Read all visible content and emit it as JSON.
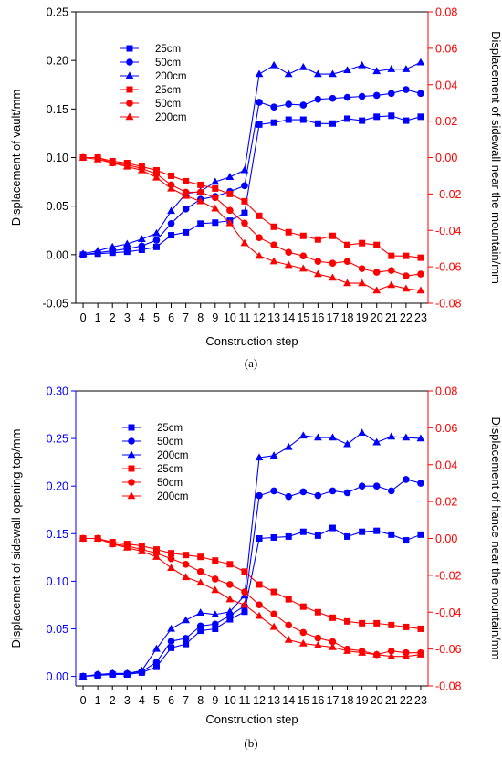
{
  "chart_data": [
    {
      "type": "line",
      "caption": "(a)",
      "xlabel": "Construction step",
      "ylabel_left": "Displacement of vault/mm",
      "ylabel_right": "Displacement of sidewall near the mountain/mm",
      "x": [
        0,
        1,
        2,
        3,
        4,
        5,
        6,
        7,
        8,
        9,
        10,
        11,
        12,
        13,
        14,
        15,
        16,
        17,
        18,
        19,
        20,
        21,
        22,
        23
      ],
      "xticks": [
        "0",
        "1",
        "2",
        "3",
        "4",
        "5",
        "6",
        "7",
        "8",
        "9",
        "10",
        "11",
        "12",
        "13",
        "14",
        "15",
        "16",
        "17",
        "18",
        "19",
        "20",
        "21",
        "22",
        "23"
      ],
      "ylim_left": [
        -0.05,
        0.25
      ],
      "yticks_left": [
        "-0.05",
        "0.00",
        "0.05",
        "0.10",
        "0.15",
        "0.20",
        "0.25"
      ],
      "ylim_right": [
        -0.08,
        0.08
      ],
      "yticks_right": [
        "-0.08",
        "-0.06",
        "-0.04",
        "-0.02",
        "0.00",
        "0.02",
        "0.04",
        "0.06",
        "0.08"
      ],
      "left_color": "#000000",
      "right_color": "#ff0000",
      "legend_position": "top-left",
      "series": [
        {
          "name": "25cm",
          "axis": "left",
          "color": "#0000ff",
          "marker": "square",
          "values": [
            0.0,
            0.001,
            0.002,
            0.003,
            0.005,
            0.008,
            0.02,
            0.023,
            0.032,
            0.033,
            0.035,
            0.043,
            0.134,
            0.136,
            0.139,
            0.139,
            0.135,
            0.135,
            0.14,
            0.138,
            0.142,
            0.143,
            0.138,
            0.142
          ]
        },
        {
          "name": "50cm",
          "axis": "left",
          "color": "#0000ff",
          "marker": "circle",
          "values": [
            0.0,
            0.002,
            0.004,
            0.006,
            0.009,
            0.015,
            0.032,
            0.047,
            0.057,
            0.06,
            0.065,
            0.071,
            0.157,
            0.152,
            0.155,
            0.154,
            0.16,
            0.161,
            0.162,
            0.163,
            0.164,
            0.166,
            0.17,
            0.166
          ]
        },
        {
          "name": "200cm",
          "axis": "left",
          "color": "#0000ff",
          "marker": "triangle",
          "values": [
            0.001,
            0.004,
            0.008,
            0.011,
            0.016,
            0.022,
            0.045,
            0.063,
            0.065,
            0.075,
            0.08,
            0.087,
            0.186,
            0.195,
            0.186,
            0.193,
            0.186,
            0.186,
            0.19,
            0.195,
            0.189,
            0.191,
            0.191,
            0.198
          ]
        },
        {
          "name": "25cm",
          "axis": "right",
          "color": "#ff0000",
          "marker": "square",
          "values": [
            0.0,
            0.0,
            -0.002,
            -0.003,
            -0.005,
            -0.007,
            -0.01,
            -0.013,
            -0.015,
            -0.017,
            -0.02,
            -0.024,
            -0.032,
            -0.038,
            -0.041,
            -0.043,
            -0.045,
            -0.043,
            -0.048,
            -0.047,
            -0.048,
            -0.054,
            -0.054,
            -0.055
          ]
        },
        {
          "name": "50cm",
          "axis": "right",
          "color": "#ff0000",
          "marker": "circle",
          "values": [
            0.0,
            0.0,
            -0.003,
            -0.004,
            -0.006,
            -0.009,
            -0.015,
            -0.019,
            -0.019,
            -0.022,
            -0.029,
            -0.036,
            -0.044,
            -0.048,
            -0.052,
            -0.054,
            -0.057,
            -0.058,
            -0.057,
            -0.061,
            -0.063,
            -0.062,
            -0.065,
            -0.064
          ]
        },
        {
          "name": "200cm",
          "axis": "right",
          "color": "#ff0000",
          "marker": "triangle",
          "values": [
            0.0,
            -0.001,
            -0.003,
            -0.005,
            -0.007,
            -0.011,
            -0.017,
            -0.021,
            -0.024,
            -0.028,
            -0.036,
            -0.047,
            -0.054,
            -0.057,
            -0.059,
            -0.061,
            -0.064,
            -0.066,
            -0.069,
            -0.069,
            -0.073,
            -0.07,
            -0.072,
            -0.073
          ]
        }
      ]
    },
    {
      "type": "line",
      "caption": "(b)",
      "xlabel": "Construction step",
      "ylabel_left": "Displacement of sidewall opening top/mm",
      "ylabel_right": "Displacement of hance near the mountain/mm",
      "x": [
        0,
        1,
        2,
        3,
        4,
        5,
        6,
        7,
        8,
        9,
        10,
        11,
        12,
        13,
        14,
        15,
        16,
        17,
        18,
        19,
        20,
        21,
        22,
        23
      ],
      "xticks": [
        "0",
        "1",
        "2",
        "3",
        "4",
        "5",
        "6",
        "7",
        "8",
        "9",
        "10",
        "11",
        "12",
        "13",
        "14",
        "15",
        "16",
        "17",
        "18",
        "19",
        "20",
        "21",
        "22",
        "23"
      ],
      "ylim_left": [
        -0.01,
        0.3
      ],
      "yticks_left": [
        "0.00",
        "0.05",
        "0.10",
        "0.15",
        "0.20",
        "0.25",
        "0.30"
      ],
      "ylim_right": [
        -0.08,
        0.08
      ],
      "yticks_right": [
        "-0.08",
        "-0.06",
        "-0.04",
        "-0.02",
        "0.00",
        "0.02",
        "0.04",
        "0.06",
        "0.08"
      ],
      "left_color": "#0000ff",
      "right_color": "#ff0000",
      "legend_position": "top-left",
      "series": [
        {
          "name": "25cm",
          "axis": "left",
          "color": "#0000ff",
          "marker": "square",
          "values": [
            0.0,
            0.001,
            0.002,
            0.002,
            0.004,
            0.01,
            0.03,
            0.034,
            0.048,
            0.05,
            0.06,
            0.068,
            0.145,
            0.146,
            0.147,
            0.152,
            0.148,
            0.156,
            0.147,
            0.152,
            0.153,
            0.149,
            0.143,
            0.149
          ]
        },
        {
          "name": "50cm",
          "axis": "left",
          "color": "#0000ff",
          "marker": "circle",
          "values": [
            0.0,
            0.002,
            0.003,
            0.003,
            0.005,
            0.015,
            0.037,
            0.04,
            0.053,
            0.055,
            0.064,
            0.074,
            0.19,
            0.195,
            0.189,
            0.194,
            0.19,
            0.195,
            0.193,
            0.2,
            0.2,
            0.195,
            0.207,
            0.203
          ]
        },
        {
          "name": "200cm",
          "axis": "left",
          "color": "#0000ff",
          "marker": "triangle",
          "values": [
            0.0,
            0.002,
            0.003,
            0.003,
            0.006,
            0.029,
            0.05,
            0.059,
            0.067,
            0.065,
            0.068,
            0.085,
            0.23,
            0.232,
            0.241,
            0.253,
            0.251,
            0.251,
            0.244,
            0.256,
            0.246,
            0.252,
            0.251,
            0.25
          ]
        },
        {
          "name": "25cm",
          "axis": "right",
          "color": "#ff0000",
          "marker": "square",
          "values": [
            0.0,
            0.0,
            -0.002,
            -0.003,
            -0.004,
            -0.006,
            -0.008,
            -0.009,
            -0.01,
            -0.012,
            -0.014,
            -0.018,
            -0.025,
            -0.029,
            -0.033,
            -0.037,
            -0.04,
            -0.043,
            -0.045,
            -0.046,
            -0.046,
            -0.047,
            -0.048,
            -0.049
          ]
        },
        {
          "name": "50cm",
          "axis": "right",
          "color": "#ff0000",
          "marker": "circle",
          "values": [
            0.0,
            0.0,
            -0.003,
            -0.004,
            -0.006,
            -0.008,
            -0.011,
            -0.014,
            -0.018,
            -0.022,
            -0.025,
            -0.029,
            -0.036,
            -0.041,
            -0.047,
            -0.051,
            -0.054,
            -0.056,
            -0.06,
            -0.061,
            -0.063,
            -0.061,
            -0.062,
            -0.062
          ]
        },
        {
          "name": "200cm",
          "axis": "right",
          "color": "#ff0000",
          "marker": "triangle",
          "values": [
            0.0,
            0.0,
            -0.003,
            -0.005,
            -0.007,
            -0.01,
            -0.016,
            -0.021,
            -0.024,
            -0.028,
            -0.033,
            -0.036,
            -0.042,
            -0.048,
            -0.055,
            -0.057,
            -0.058,
            -0.059,
            -0.061,
            -0.062,
            -0.063,
            -0.064,
            -0.064,
            -0.063
          ]
        }
      ]
    }
  ]
}
